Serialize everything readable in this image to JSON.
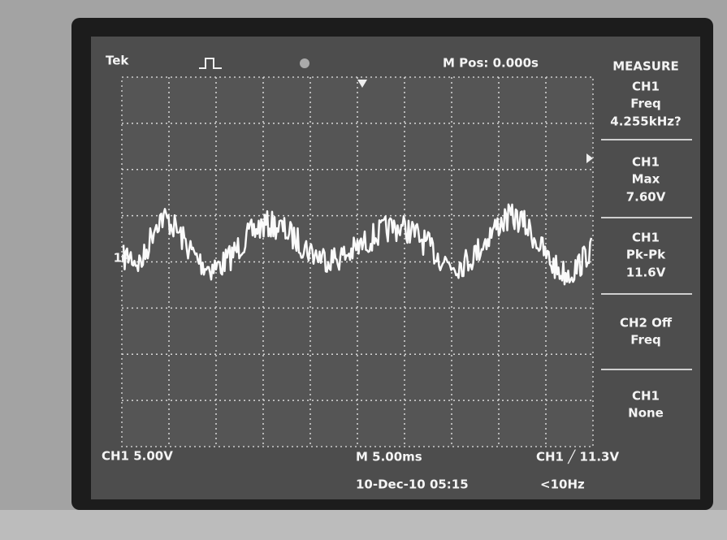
{
  "header": {
    "brand": "Tek",
    "position": "M Pos: 0.000s"
  },
  "marker": "1",
  "measure": {
    "title": "MEASURE",
    "items": [
      {
        "source": "CH1",
        "type": "Freq",
        "value": "4.255kHz?"
      },
      {
        "source": "CH1",
        "type": "Max",
        "value": "7.60V"
      },
      {
        "source": "CH1",
        "type": "Pk-Pk",
        "value": "11.6V"
      },
      {
        "source": "CH2 Off",
        "type": "Freq"
      },
      {
        "source": "CH1",
        "type": "None"
      }
    ]
  },
  "footer": {
    "channel_scale": "CH1 5.00V",
    "time_scale": "M 5.00ms",
    "date": "10-Dec-10 05:15",
    "trigger": "CH1 ╱ 11.3V",
    "trigger_freq": "<10Hz"
  }
}
